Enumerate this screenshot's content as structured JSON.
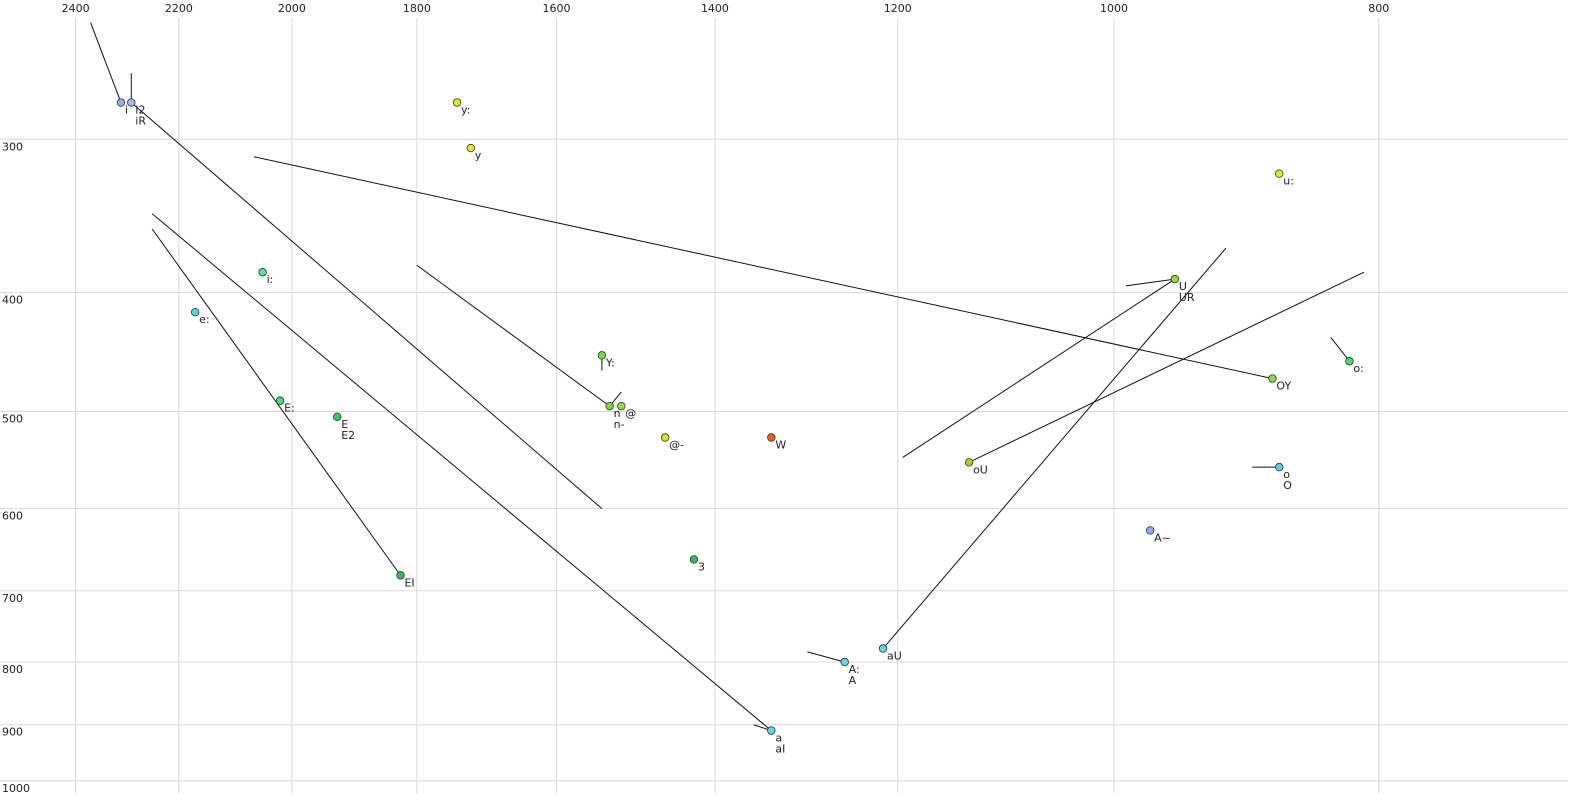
{
  "chart_data": {
    "type": "scatter",
    "xlim": [
      2558,
      682
    ],
    "ylim": [
      231,
      1023
    ],
    "log_x": true,
    "log_y": true,
    "grid": true,
    "xticks": [
      2400,
      2200,
      2000,
      1800,
      1600,
      1400,
      1200,
      1000,
      800
    ],
    "yticks": [
      300,
      400,
      500,
      600,
      700,
      800,
      900,
      1000
    ],
    "labels": [
      [
        "i"
      ],
      [
        "I2",
        "iR"
      ],
      [
        "y:"
      ],
      [
        "y"
      ],
      [
        "u:"
      ],
      [
        "i:"
      ],
      [
        "e:"
      ],
      [
        "U",
        "UR"
      ],
      [
        "Y:"
      ],
      [
        "o:"
      ],
      [
        "OY"
      ],
      [
        "E:"
      ],
      [
        "E",
        "E2"
      ],
      [
        "n",
        "n-"
      ],
      [
        "@"
      ],
      [
        "@-"
      ],
      [
        "W"
      ],
      [
        "oU"
      ],
      [
        "o",
        "O"
      ],
      [
        "A~"
      ],
      [
        "3"
      ],
      [
        "EI"
      ],
      [
        "aU"
      ],
      [
        "A:",
        "A"
      ],
      [
        "a",
        "aI"
      ]
    ],
    "x": [
      2310,
      2290,
      1740,
      1720,
      870,
      2050,
      2170,
      950,
      1540,
      820,
      875,
      2020,
      1925,
      1530,
      1515,
      1460,
      1335,
      1130,
      870,
      970,
      1425,
      1825,
      1215,
      1255,
      1335
    ],
    "y": [
      280,
      280,
      280,
      305,
      320,
      385,
      415,
      390,
      450,
      455,
      470,
      490,
      505,
      495,
      495,
      525,
      525,
      550,
      555,
      625,
      660,
      680,
      780,
      800,
      910
    ],
    "colors": [
      "#8fb0f0",
      "#a8b8f0",
      "#e8e820",
      "#e0e820",
      "#d8f020",
      "#50e890",
      "#50d8e0",
      "#90e030",
      "#70e040",
      "#40e060",
      "#80e040",
      "#40e070",
      "#30d050",
      "#70e030",
      "#90e040",
      "#e0e020",
      "#f06010",
      "#b0d020",
      "#50d0e0",
      "#90a8f0",
      "#30c050",
      "#30c050",
      "#60d8e8",
      "#60d8e8",
      "#60d8e8"
    ],
    "segments": [
      {
        "x": [
          2370,
          2310
        ],
        "y": [
          241,
          280
        ]
      },
      {
        "x": [
          2290,
          2290
        ],
        "y": [
          265,
          280
        ]
      },
      {
        "x": [
          2290,
          1540
        ],
        "y": [
          280,
          600
        ]
      },
      {
        "x": [
          2065,
          875
        ],
        "y": [
          310,
          470
        ]
      },
      {
        "x": [
          2250,
          1335
        ],
        "y": [
          345,
          910
        ]
      },
      {
        "x": [
          2250,
          1825
        ],
        "y": [
          355,
          680
        ]
      },
      {
        "x": [
          1800,
          1530
        ],
        "y": [
          380,
          495
        ]
      },
      {
        "x": [
          1530,
          1515
        ],
        "y": [
          495,
          482
        ]
      },
      {
        "x": [
          1540,
          1540
        ],
        "y": [
          450,
          463
        ]
      },
      {
        "x": [
          1195,
          950
        ],
        "y": [
          545,
          390
        ]
      },
      {
        "x": [
          990,
          950
        ],
        "y": [
          395,
          390
        ]
      },
      {
        "x": [
          1215,
          910
        ],
        "y": [
          780,
          368
        ]
      },
      {
        "x": [
          1130,
          810
        ],
        "y": [
          550,
          385
        ]
      },
      {
        "x": [
          833,
          820
        ],
        "y": [
          435,
          455
        ]
      },
      {
        "x": [
          890,
          870
        ],
        "y": [
          555,
          555
        ]
      },
      {
        "x": [
          1295,
          1255
        ],
        "y": [
          785,
          800
        ]
      },
      {
        "x": [
          1355,
          1335
        ],
        "y": [
          900,
          910
        ]
      }
    ]
  }
}
